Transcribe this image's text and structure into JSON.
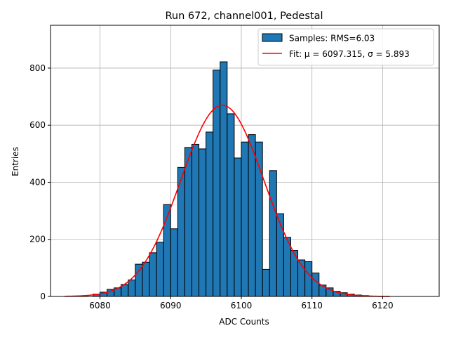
{
  "chart_data": {
    "type": "bar",
    "title": "Run 672, channel001, Pedestal",
    "xlabel": "ADC Counts",
    "ylabel": "Entries",
    "xlim": [
      6073,
      6128
    ],
    "ylim": [
      0,
      950
    ],
    "xticks": [
      6080,
      6090,
      6100,
      6110,
      6120
    ],
    "yticks": [
      0,
      200,
      400,
      600,
      800
    ],
    "grid": true,
    "legend_position": "top-right",
    "bin_width": 1,
    "series": [
      {
        "name": "Samples: RMS=6.03",
        "kind": "histogram",
        "color": "#1f77b4",
        "bin_left": [
          6079,
          6080,
          6081,
          6082,
          6083,
          6084,
          6085,
          6086,
          6087,
          6088,
          6089,
          6090,
          6091,
          6092,
          6093,
          6094,
          6095,
          6096,
          6097,
          6098,
          6099,
          6100,
          6101,
          6102,
          6103,
          6104,
          6105,
          6106,
          6107,
          6108,
          6109,
          6110,
          6111,
          6112,
          6113,
          6114,
          6115,
          6116,
          6117
        ],
        "values": [
          8,
          15,
          25,
          30,
          42,
          58,
          113,
          120,
          153,
          190,
          322,
          237,
          452,
          522,
          533,
          517,
          576,
          793,
          822,
          640,
          485,
          541,
          567,
          541,
          95,
          441,
          290,
          207,
          161,
          128,
          122,
          82,
          40,
          30,
          18,
          13,
          8,
          5,
          3
        ]
      },
      {
        "name": "Fit: μ = 6097.315, σ = 5.893",
        "kind": "gaussian",
        "color": "#ff0000",
        "mu": 6097.315,
        "sigma": 5.893,
        "amplitude": 670,
        "range": [
          6075,
          6121
        ]
      }
    ]
  }
}
